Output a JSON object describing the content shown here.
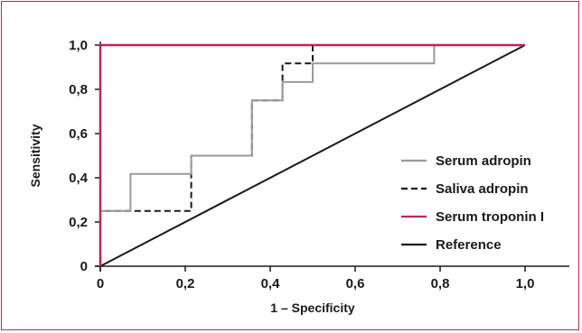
{
  "chart_data": {
    "type": "line",
    "title": "",
    "xlabel": "1 – Specificity",
    "ylabel": "Sensitivity",
    "xlim": [
      0,
      1
    ],
    "ylim": [
      0,
      1
    ],
    "x_ticks": [
      "0",
      "0,2",
      "0,4",
      "0,6",
      "0,8",
      "1,0"
    ],
    "y_ticks": [
      "0",
      "0,2",
      "0,4",
      "0,6",
      "0,8",
      "1,0"
    ],
    "grid": false,
    "legend_position": "right",
    "series": [
      {
        "name": "Serum adropin",
        "color": "#999999",
        "style": "solid",
        "x": [
          0,
          0,
          0.071,
          0.071,
          0.214,
          0.214,
          0.357,
          0.357,
          0.429,
          0.429,
          0.5,
          0.5,
          0.786,
          0.786,
          1.0
        ],
        "y": [
          0,
          0.25,
          0.25,
          0.417,
          0.417,
          0.5,
          0.5,
          0.75,
          0.75,
          0.833,
          0.833,
          0.917,
          0.917,
          1.0,
          1.0
        ]
      },
      {
        "name": "Saliva adropin",
        "color": "#1a1a1a",
        "style": "dashed",
        "x": [
          0,
          0,
          0.214,
          0.214,
          0.357,
          0.357,
          0.429,
          0.429,
          0.5,
          0.5,
          1.0
        ],
        "y": [
          0,
          0.25,
          0.25,
          0.5,
          0.5,
          0.75,
          0.75,
          0.917,
          0.917,
          1.0,
          1.0
        ]
      },
      {
        "name": "Serum troponin I",
        "color": "#c0244f",
        "style": "solid",
        "x": [
          0,
          0,
          1.0
        ],
        "y": [
          0,
          1.0,
          1.0
        ]
      },
      {
        "name": "Reference",
        "color": "#1a1a1a",
        "style": "solid",
        "x": [
          0,
          1.0
        ],
        "y": [
          0,
          1.0
        ]
      }
    ]
  }
}
